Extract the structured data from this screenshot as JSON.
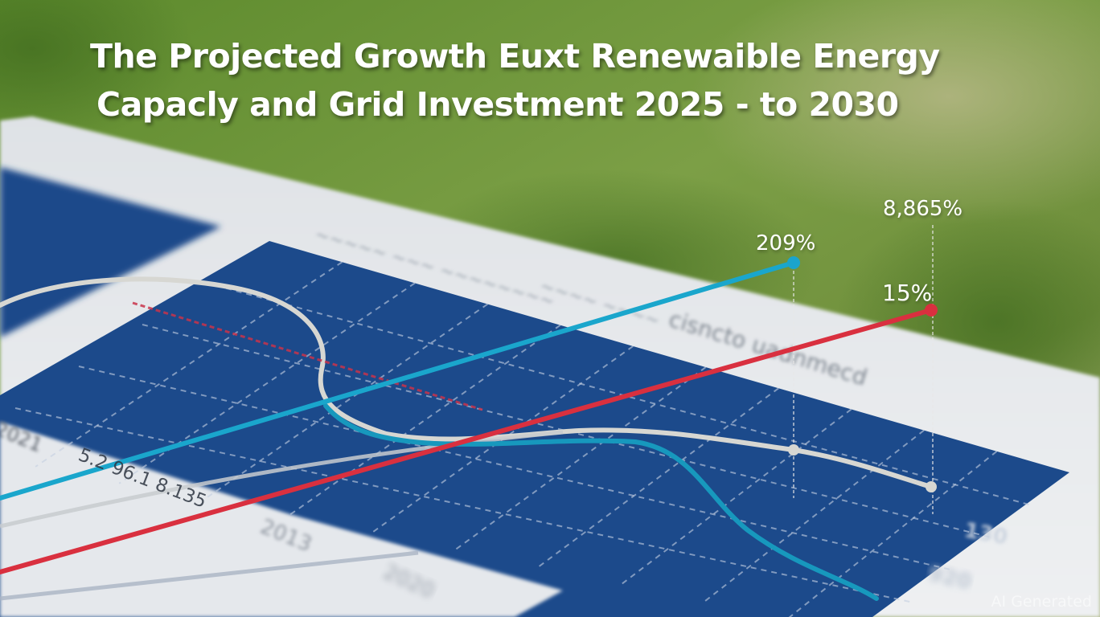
{
  "title": {
    "line1": "The Projected Growth Euxt Renewaible Energy",
    "line2": "Capacly and Grid Investment 2025 - to 2030"
  },
  "watermark": "AI Generated",
  "colors": {
    "background_green": "#6f8f3a",
    "paper": "#e3e6ea",
    "grid_panel": "#1d4a8c",
    "teal_series": "#1aa3c8",
    "red_series": "#d9303f",
    "gray_series": "#d6d6d2",
    "label_text": "#ffffff"
  },
  "chart_data": {
    "type": "line",
    "title": "The Projected Growth Euxt Renewaible Energy Capacly and Grid Investment 2025 - to 2030",
    "grid": true,
    "series": [
      {
        "name": "teal",
        "end_label": "209%"
      },
      {
        "name": "red",
        "end_label": "15%"
      },
      {
        "name": "gray",
        "end_label": ""
      },
      {
        "name": "teal-descending",
        "end_label": ""
      }
    ],
    "annotations": [
      "209%",
      "8,865%",
      "15%"
    ],
    "y_tick_labels": [
      "130",
      "920"
    ],
    "x_tick_labels": [
      "2021",
      "2013",
      "2020"
    ],
    "row_label": "5.2 96.1 8.135",
    "header_text": "cisncto uadnmecd"
  }
}
